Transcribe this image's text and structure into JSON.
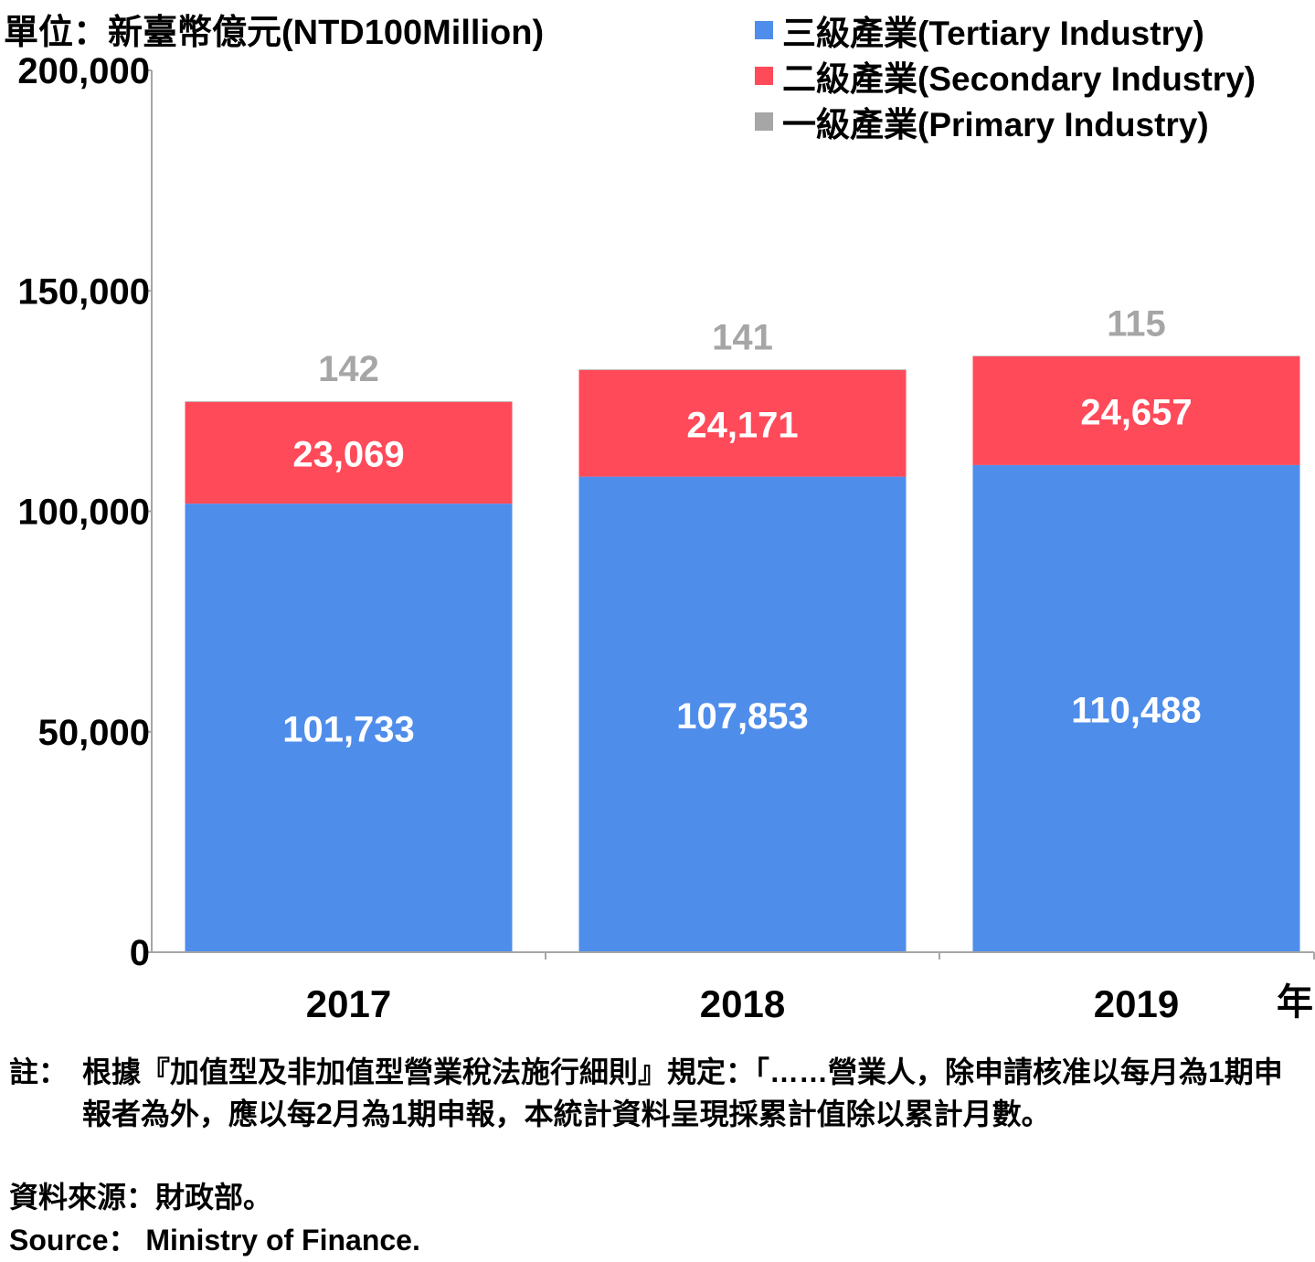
{
  "unit_label": "單位：新臺幣億元(NTD100Million)",
  "x_unit_label": "年",
  "colors": {
    "tertiary": "#4F8DEB",
    "secondary": "#FF4A5A",
    "primary": "#A6A6A6",
    "axis": "#A6A6A6"
  },
  "chart_data": {
    "type": "bar",
    "stacked": true,
    "categories": [
      "2017",
      "2018",
      "2019"
    ],
    "series": [
      {
        "name": "三級產業(Tertiary Industry)",
        "values": [
          101733,
          107853,
          110488
        ],
        "label_color": "#FFFFFF",
        "color_key": "tertiary"
      },
      {
        "name": "二級產業(Secondary Industry)",
        "values": [
          23069,
          24171,
          24657
        ],
        "label_color": "#FFFFFF",
        "color_key": "secondary"
      },
      {
        "name": "一級產業(Primary Industry)",
        "values": [
          142,
          141,
          115
        ],
        "label_color": "#A6A6A6",
        "color_key": "primary"
      }
    ],
    "data_labels": [
      [
        "101,733",
        "107,853",
        "110,488"
      ],
      [
        "23,069",
        "24,171",
        "24,657"
      ],
      [
        "142",
        "141",
        "115"
      ]
    ],
    "ylim": [
      0,
      200000
    ],
    "yticks": [
      0,
      50000,
      100000,
      150000,
      200000
    ],
    "ytick_labels": [
      "0",
      "50,000",
      "100,000",
      "150,000",
      "200,000"
    ],
    "grid": false,
    "legend_position": "top-right"
  },
  "note": {
    "prefix": "註：",
    "text": "根據『加值型及非加值型營業稅法施行細則』規定：「……營業人，除申請核准以每月為1期申報者為外，應以每2月為1期申報，本統計資料呈現採累計值除以累計月數。"
  },
  "source_zh": "資料來源：財政部。",
  "source_en": "Source： Ministry of Finance."
}
